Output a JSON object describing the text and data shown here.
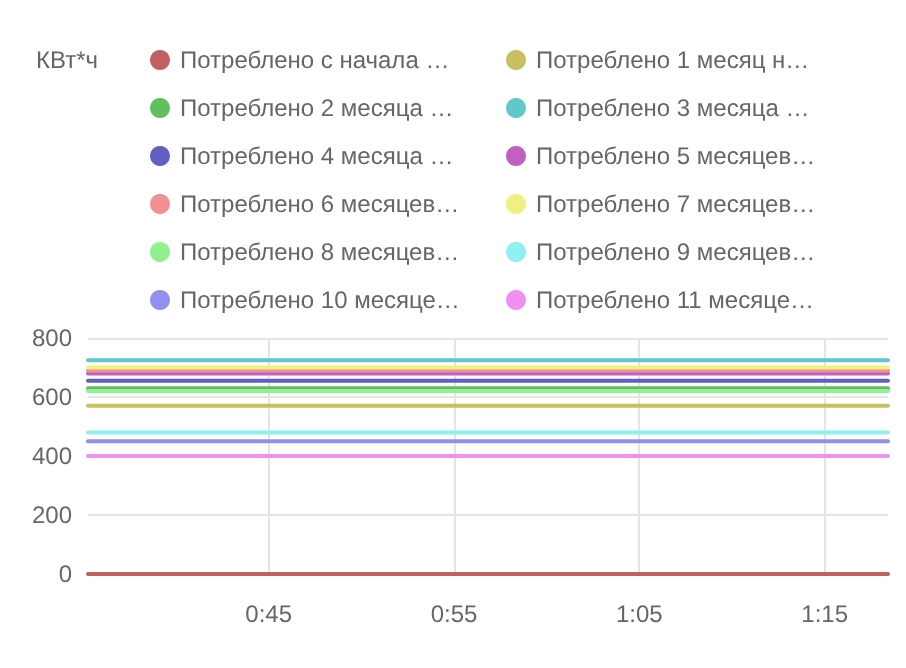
{
  "chart_data": {
    "type": "line",
    "annotations": [
      "КВт*ч"
    ],
    "legend": "top",
    "grid": true,
    "marker": "none",
    "line_style": "solid",
    "xlim": [
      0.5875,
      1.307
    ],
    "x": [
      0.5875,
      1.307
    ],
    "xticks": [
      {
        "value": 0.75,
        "label": "0:45"
      },
      {
        "value": 0.9167,
        "label": "0:55"
      },
      {
        "value": 1.0833,
        "label": "1:05"
      },
      {
        "value": 1.25,
        "label": "1:15"
      }
    ],
    "ylim": [
      0,
      800
    ],
    "yticks": [
      0,
      200,
      400,
      600,
      800
    ],
    "series": [
      {
        "name": "Потреблено с начала …",
        "color": "#c06060",
        "values": [
          0,
          0
        ]
      },
      {
        "name": "Потреблено 1 месяц н…",
        "color": "#c8c060",
        "values": [
          570,
          570
        ]
      },
      {
        "name": "Потреблено 2 месяца …",
        "color": "#60c060",
        "values": [
          630,
          630
        ]
      },
      {
        "name": "Потреблено 3 месяца …",
        "color": "#60c8c8",
        "values": [
          725,
          725
        ]
      },
      {
        "name": "Потреблено 4 месяца …",
        "color": "#6060c0",
        "values": [
          655,
          655
        ]
      },
      {
        "name": "Потреблено 5 месяцев…",
        "color": "#c060c0",
        "values": [
          680,
          680
        ]
      },
      {
        "name": "Потреблено 6 месяцев…",
        "color": "#f09090",
        "values": [
          690,
          690
        ]
      },
      {
        "name": "Потреблено 7 месяцев…",
        "color": "#f0f080",
        "values": [
          700,
          700
        ]
      },
      {
        "name": "Потреблено 8 месяцев…",
        "color": "#90f090",
        "values": [
          620,
          620
        ]
      },
      {
        "name": "Потреблено 9 месяцев…",
        "color": "#90f0f0",
        "values": [
          480,
          480
        ]
      },
      {
        "name": "Потреблено 10 месяце…",
        "color": "#9090f0",
        "values": [
          450,
          450
        ]
      },
      {
        "name": "Потреблено 11 месяце…",
        "color": "#f090f0",
        "values": [
          400,
          400
        ]
      }
    ]
  }
}
